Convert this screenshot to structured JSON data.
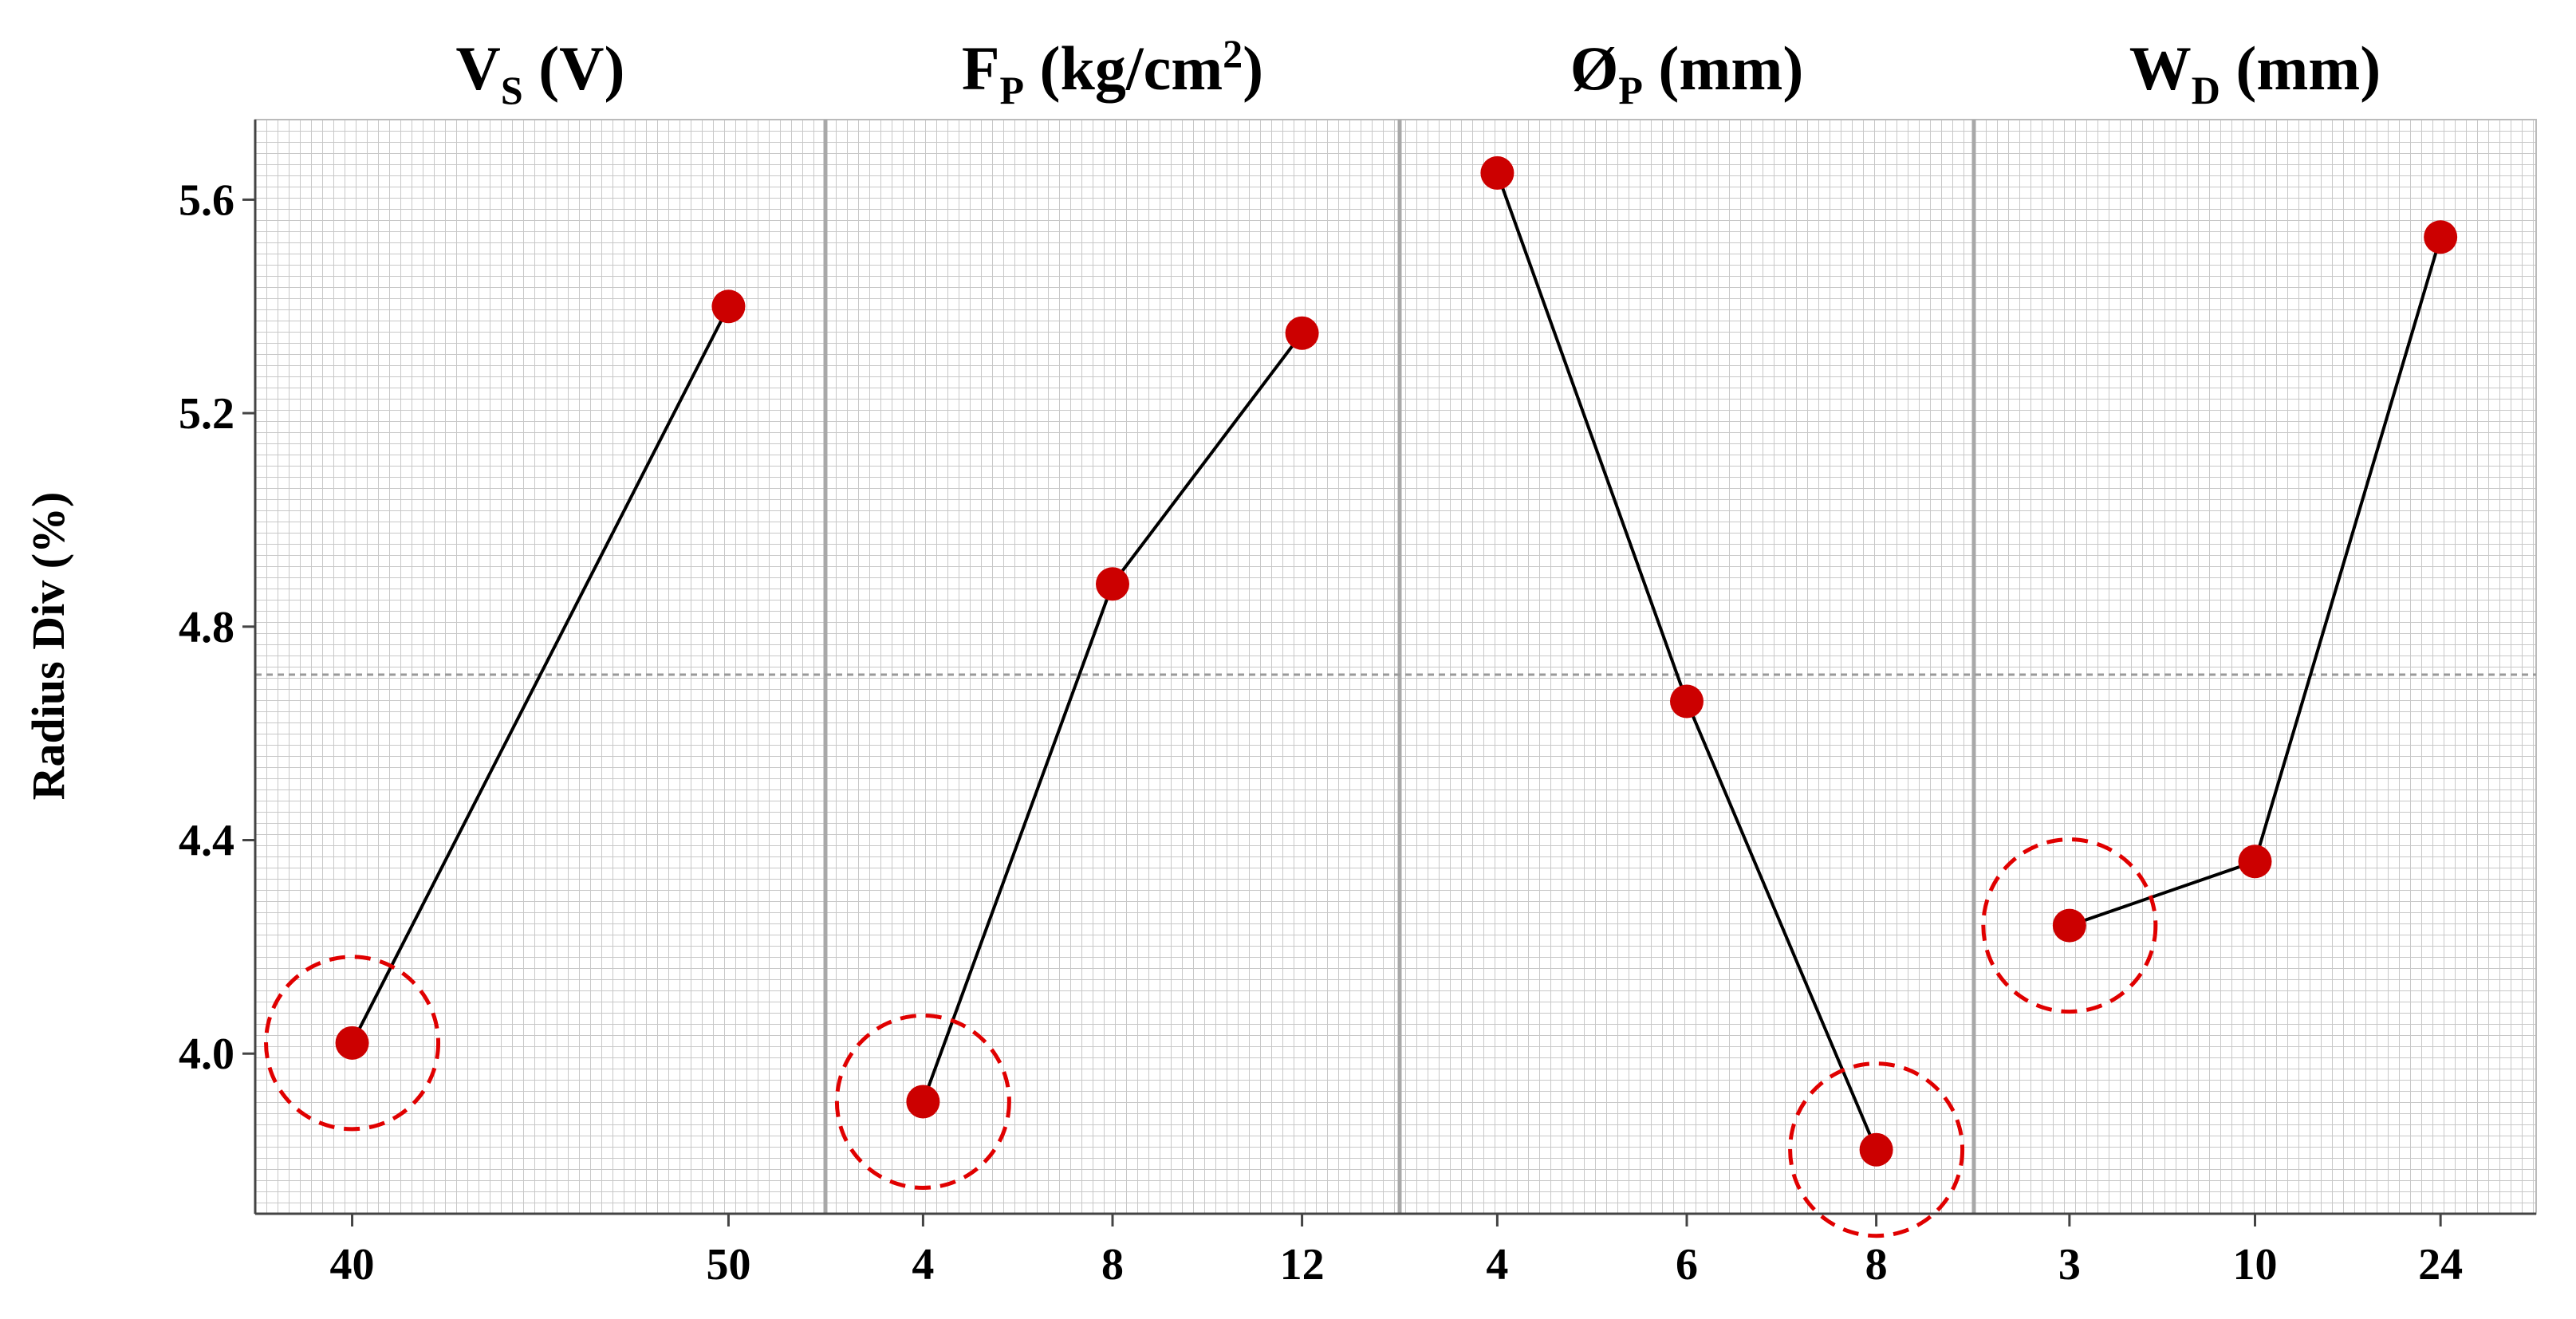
{
  "chart_data": {
    "type": "line",
    "ylabel": "Radius Div (%)",
    "ylim": [
      3.7,
      5.75
    ],
    "yticks": [
      "4.0",
      "4.4",
      "4.8",
      "5.2",
      "5.6"
    ],
    "grid": true,
    "reference_line": 4.71,
    "colors": {
      "marker": "#cc0000",
      "line": "#000000",
      "grid": "#c8c8c8",
      "highlight_circle": "#e00000"
    },
    "panels": [
      {
        "title_main": "V",
        "title_sub": "S",
        "title_sup": "",
        "title_rest": " (V)",
        "categories": [
          "40",
          "50"
        ],
        "values": [
          4.02,
          5.4
        ],
        "highlight_index": 0
      },
      {
        "title_main": "F",
        "title_sub": "P",
        "title_sup": "",
        "title_rest": " (kg/cm",
        "title_rest_sup": "2",
        "title_rest_end": ")",
        "categories": [
          "4",
          "8",
          "12"
        ],
        "values": [
          3.91,
          4.88,
          5.35
        ],
        "highlight_index": 0
      },
      {
        "title_main": "Ø",
        "title_sub": "P",
        "title_sup": "",
        "title_rest": " (mm)",
        "categories": [
          "4",
          "6",
          "8"
        ],
        "values": [
          5.65,
          4.66,
          3.82
        ],
        "highlight_index": 2
      },
      {
        "title_main": "W",
        "title_sub": "D",
        "title_sup": "",
        "title_rest": " (mm)",
        "categories": [
          "3",
          "10",
          "24"
        ],
        "values": [
          4.24,
          4.36,
          5.53
        ],
        "highlight_index": 0
      }
    ]
  }
}
